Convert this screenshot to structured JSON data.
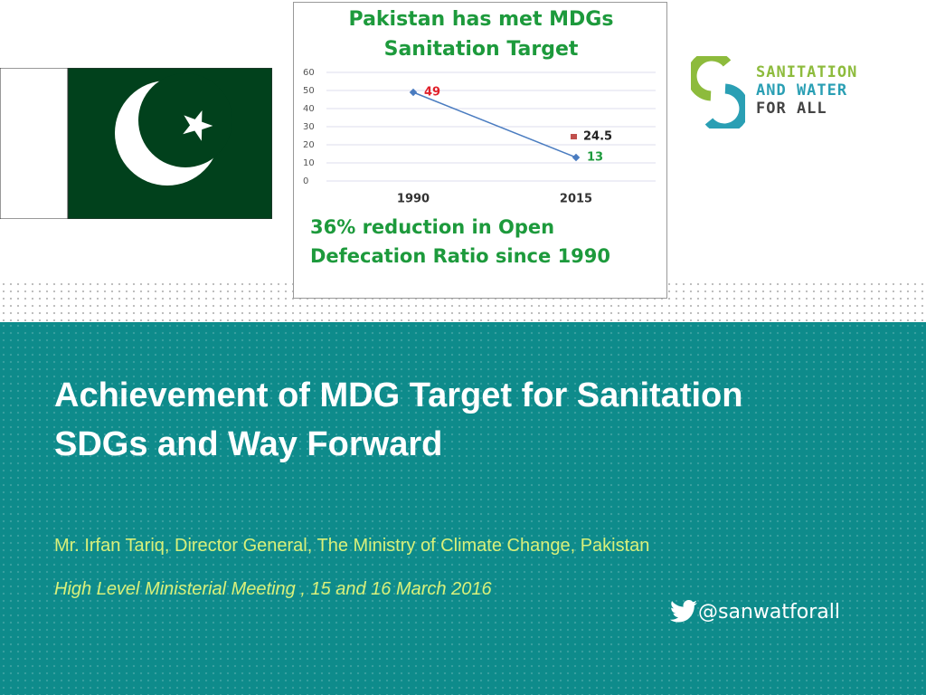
{
  "inset_chart": {
    "type": "line",
    "title": "Pakistan has met MDGs Sanitation Target",
    "categories": [
      "1990",
      "2015"
    ],
    "series": [
      {
        "color": "#4a7cc0",
        "values": [
          49,
          13
        ]
      }
    ],
    "target": {
      "value": 24.5,
      "color": "#c0504d"
    },
    "ylim": [
      0,
      60
    ],
    "yticks": [
      0,
      10,
      20,
      30,
      40,
      50,
      60
    ],
    "grid": true,
    "caption": "36% reduction in Open Defecation Ratio since 1990"
  },
  "logo": {
    "lines": [
      "SANITATION",
      "AND WATER",
      "FOR ALL"
    ]
  },
  "slide": {
    "title_lines": [
      "Achievement of MDG Target for Sanitation",
      "SDGs and Way Forward"
    ],
    "presenter": "Mr. Irfan Tariq, Director General, The Ministry of Climate Change, Pakistan",
    "event": "High Level Ministerial Meeting , 15 and 16 March 2016",
    "twitter": "@sanwatforall"
  }
}
